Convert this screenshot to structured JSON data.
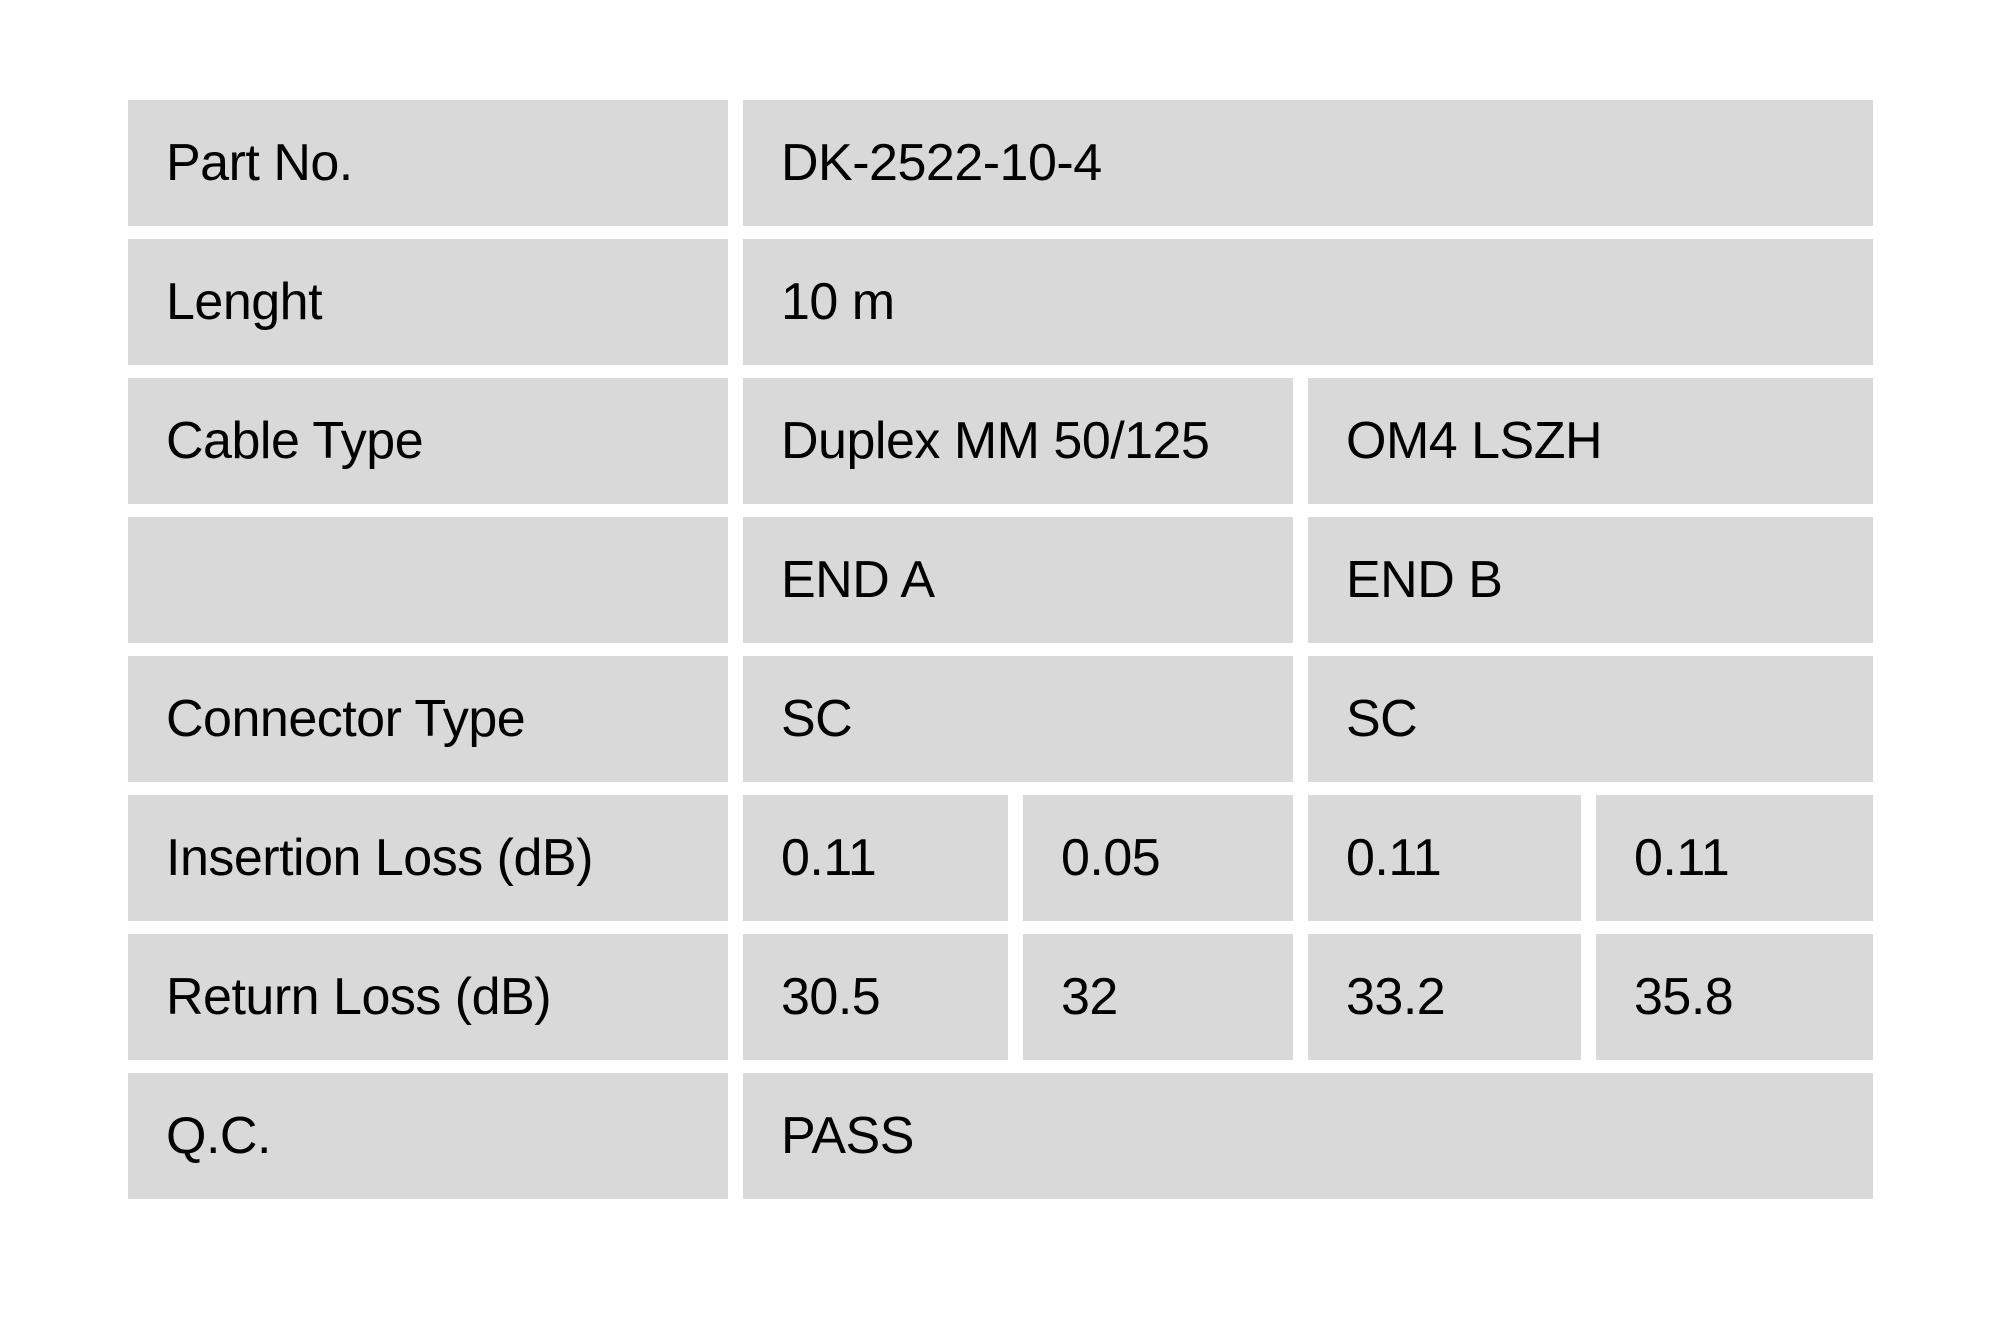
{
  "table": {
    "title_semantic": "fiber-patch-cable-qc-spec-table",
    "colors": {
      "cell_background": "#d9d9d9",
      "page_background": "#ffffff",
      "text": "#000000"
    },
    "rows": {
      "part_no": {
        "label": "Part No.",
        "value": "DK-2522-10-4"
      },
      "length": {
        "label": "Lenght",
        "value": "10 m"
      },
      "cable_type": {
        "label": "Cable Type",
        "end_a": "Duplex MM 50/125",
        "end_b": "OM4 LSZH"
      },
      "ends_header": {
        "label": "",
        "end_a": "END A",
        "end_b": "END B"
      },
      "connector_type": {
        "label": "Connector Type",
        "end_a": "SC",
        "end_b": "SC"
      },
      "insertion_loss": {
        "label": "Insertion Loss (dB)",
        "end_a_1": "0.11",
        "end_a_2": "0.05",
        "end_b_1": "0.11",
        "end_b_2": "0.11"
      },
      "return_loss": {
        "label": "Return Loss (dB)",
        "end_a_1": "30.5",
        "end_a_2": "32",
        "end_b_1": "33.2",
        "end_b_2": "35.8"
      },
      "qc": {
        "label": "Q.C.",
        "value": "PASS"
      }
    }
  }
}
